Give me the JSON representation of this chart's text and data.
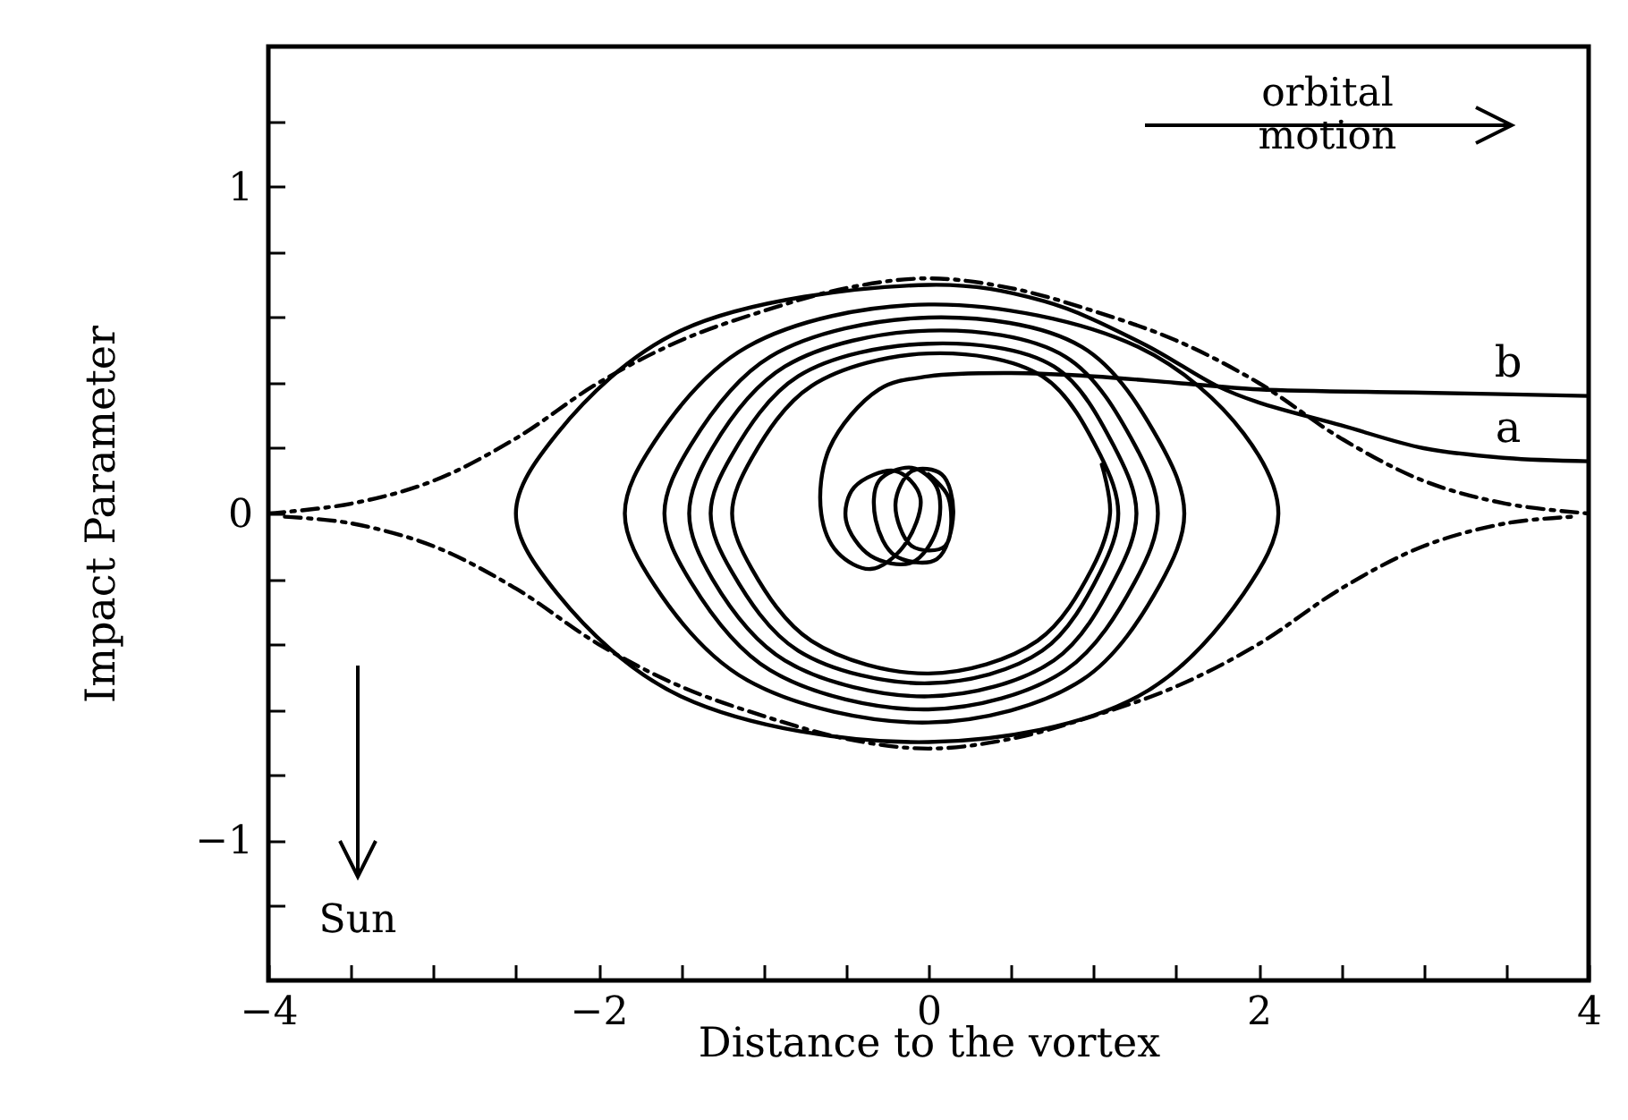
{
  "chart_data": {
    "type": "line",
    "xlabel": "Distance to the vortex",
    "ylabel": "Impact Parameter",
    "xlim": [
      -4,
      4
    ],
    "ylim": [
      -1.43,
      1.43
    ],
    "xticks": [
      {
        "value": -4,
        "label": "−4"
      },
      {
        "value": -3.5,
        "label": null
      },
      {
        "value": -3,
        "label": null
      },
      {
        "value": -2.5,
        "label": null
      },
      {
        "value": -2,
        "label": "−2"
      },
      {
        "value": -1.5,
        "label": null
      },
      {
        "value": -1,
        "label": null
      },
      {
        "value": -0.5,
        "label": null
      },
      0,
      {
        "value": 0.5,
        "label": null
      },
      {
        "value": 1,
        "label": null
      },
      {
        "value": 1.5,
        "label": null
      },
      2,
      {
        "value": 2.5,
        "label": null
      },
      {
        "value": 3,
        "label": null
      },
      {
        "value": 3.5,
        "label": null
      },
      4
    ],
    "yticks": [
      {
        "value": -1.2,
        "label": null
      },
      {
        "value": -1,
        "label": "−1"
      },
      {
        "value": -0.8,
        "label": null
      },
      {
        "value": -0.6,
        "label": null
      },
      {
        "value": -0.4,
        "label": null
      },
      {
        "value": -0.2,
        "label": null
      },
      0,
      {
        "value": 0.2,
        "label": null
      },
      {
        "value": 0.4,
        "label": null
      },
      {
        "value": 0.6,
        "label": null
      },
      {
        "value": 0.8,
        "label": null
      },
      1,
      {
        "value": 1.2,
        "label": null
      }
    ],
    "annotations": [
      "orbital\nmotion",
      "Sun"
    ],
    "series": [
      {
        "color": "#000000",
        "line_style": "dashed",
        "x": [
          -4,
          -3.5,
          -3,
          -2.5,
          -2,
          -1.5,
          -1,
          -0.5,
          0,
          0.5,
          1,
          1.5,
          2,
          2.5,
          3,
          3.5,
          4
        ],
        "values": [
          0,
          0.03,
          0.1,
          0.23,
          0.4,
          0.53,
          0.62,
          0.69,
          0.72,
          0.69,
          0.62,
          0.53,
          0.4,
          0.23,
          0.1,
          0.03,
          0
        ]
      },
      {
        "color": "#000000",
        "line_style": "dashed",
        "x": [
          -3.9,
          -3.5,
          -3,
          -2.5,
          -2,
          -1.5,
          -1,
          -0.5,
          0,
          0.5,
          1,
          1.5,
          2,
          2.5,
          3,
          3.5,
          3.9
        ],
        "values": [
          -0.01,
          -0.03,
          -0.1,
          -0.23,
          -0.4,
          -0.53,
          -0.62,
          -0.69,
          -0.72,
          -0.69,
          -0.62,
          -0.53,
          -0.4,
          -0.23,
          -0.1,
          -0.03,
          -0.01
        ]
      },
      {
        "name": "a",
        "color": "#000000",
        "line_style": "solid",
        "x": [
          4,
          3.5,
          3,
          2.5,
          2,
          1.75,
          1.3,
          0.7,
          0,
          -1.5,
          -2.25,
          -2.5,
          -2.25,
          -1.5,
          0,
          1.27,
          1.91,
          2.12,
          1.91,
          1.27,
          0,
          -1.1,
          -1.66,
          -1.84,
          -1.66,
          -1.1,
          0,
          0.93,
          1.4,
          1.55,
          1.4,
          0.93,
          0,
          -0.96,
          -1.44,
          -1.6,
          -1.44,
          -0.96,
          0,
          0.83,
          1.25,
          1.39,
          1.25,
          0.83,
          0,
          -0.87,
          -1.31,
          -1.45,
          -1.31,
          -0.87,
          0,
          0.76,
          1.13,
          1.26,
          1.13,
          0.76,
          0,
          -0.79,
          -1.19,
          -1.32,
          -1.19,
          -0.79,
          0,
          0.69,
          1.04,
          1.15,
          1.04,
          0.69,
          0,
          -0.71,
          -1.07,
          -1.19,
          -1.07,
          -0.71,
          0,
          0.66,
          0.99,
          1.1,
          1.05
        ],
        "values": [
          0.16,
          0.17,
          0.2,
          0.27,
          0.34,
          0.39,
          0.52,
          0.65,
          0.7,
          0.56,
          0.245,
          0,
          -0.245,
          -0.56,
          -0.7,
          -0.56,
          -0.245,
          0,
          0.245,
          0.51,
          0.64,
          0.51,
          0.22,
          0,
          -0.22,
          -0.51,
          -0.64,
          -0.51,
          -0.22,
          0,
          0.22,
          0.51,
          0.6,
          0.48,
          0.21,
          0,
          -0.21,
          -0.48,
          -0.6,
          -0.48,
          -0.21,
          0,
          0.21,
          0.48,
          0.56,
          0.45,
          0.2,
          0,
          -0.2,
          -0.45,
          -0.56,
          -0.45,
          -0.2,
          0,
          0.2,
          0.45,
          0.52,
          0.42,
          0.18,
          0,
          -0.18,
          -0.42,
          -0.52,
          -0.42,
          -0.18,
          0,
          0.18,
          0.42,
          0.49,
          0.39,
          0.17,
          0,
          -0.17,
          -0.39,
          -0.49,
          -0.39,
          -0.17,
          0,
          0.15
        ]
      },
      {
        "name": "b",
        "color": "#000000",
        "line_style": "solid",
        "x": [
          4,
          3,
          2,
          1.5,
          1,
          0.5,
          0,
          -0.3,
          -0.6,
          -0.65,
          -0.55,
          -0.35,
          -0.15,
          -0.05,
          -0.2,
          -0.45,
          -0.5,
          -0.35,
          -0.1,
          0.05,
          0.05,
          -0.1,
          -0.3,
          -0.32,
          -0.2,
          0.05,
          0.15,
          0.08,
          -0.1,
          -0.2,
          -0.1,
          0.1,
          0.12,
          0
        ],
        "values": [
          0.36,
          0.37,
          0.38,
          0.4,
          0.42,
          0.43,
          0.42,
          0.38,
          0.2,
          0,
          -0.12,
          -0.17,
          -0.1,
          0.05,
          0.13,
          0.08,
          -0.02,
          -0.13,
          -0.15,
          -0.05,
          0.08,
          0.14,
          0.1,
          -0.02,
          -0.13,
          -0.14,
          0,
          0.12,
          0.13,
          0.03,
          -0.1,
          -0.1,
          0.05,
          0.12
        ]
      }
    ]
  }
}
